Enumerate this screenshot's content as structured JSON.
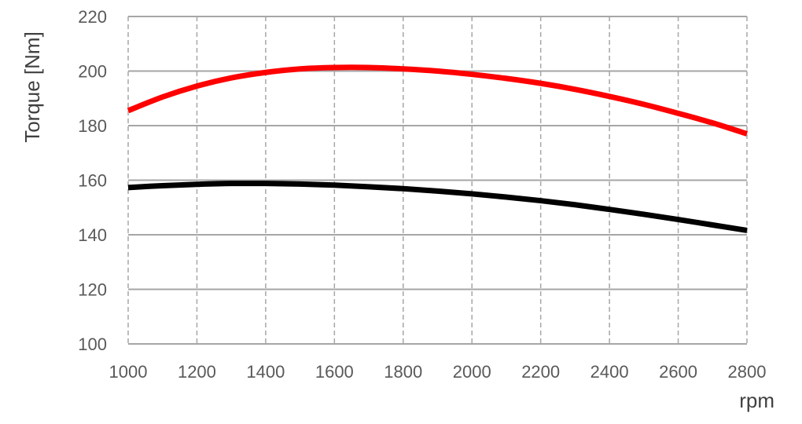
{
  "chart_data": {
    "type": "line",
    "title": "",
    "xlabel": "rpm",
    "ylabel": "Torque [Nm]",
    "xlim": [
      1000,
      2800
    ],
    "ylim": [
      100,
      220
    ],
    "xticks": [
      1000,
      1200,
      1400,
      1600,
      1800,
      2000,
      2200,
      2400,
      2600,
      2800
    ],
    "yticks": [
      100,
      120,
      140,
      160,
      180,
      200,
      220
    ],
    "grid": true,
    "legend": "none",
    "series": [
      {
        "color": "#ff0000",
        "x": [
          1000,
          1100,
          1200,
          1300,
          1400,
          1500,
          1600,
          1700,
          1800,
          1900,
          2000,
          2100,
          2200,
          2300,
          2400,
          2500,
          2600,
          2700,
          2800
        ],
        "y": [
          185.5,
          190.5,
          194.5,
          197.5,
          199.5,
          200.8,
          201.3,
          201.3,
          200.8,
          200.0,
          198.8,
          197.3,
          195.5,
          193.3,
          190.7,
          187.8,
          184.5,
          181.0,
          177.0
        ]
      },
      {
        "color": "#000000",
        "x": [
          1000,
          1100,
          1200,
          1300,
          1400,
          1500,
          1600,
          1700,
          1800,
          1900,
          2000,
          2100,
          2200,
          2300,
          2400,
          2500,
          2600,
          2700,
          2800
        ],
        "y": [
          157.3,
          158.0,
          158.5,
          158.8,
          158.8,
          158.6,
          158.2,
          157.6,
          156.9,
          156.0,
          155.0,
          153.8,
          152.5,
          151.0,
          149.3,
          147.5,
          145.6,
          143.6,
          141.6
        ]
      }
    ]
  }
}
